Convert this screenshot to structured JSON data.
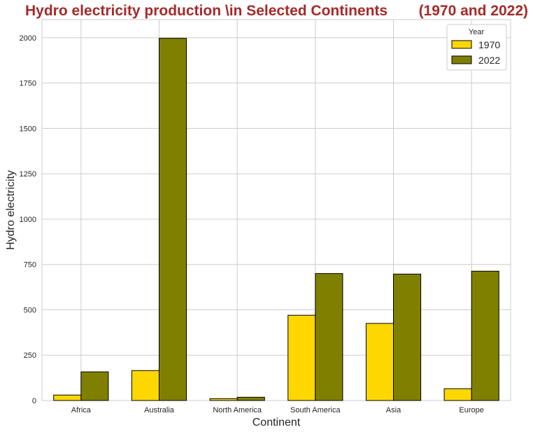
{
  "chart_data": {
    "type": "bar",
    "title_left": "Hydro electricity production \\in Selected Continents",
    "title_right": "(1970 and 2022)",
    "xlabel": "Continent",
    "ylabel": "Hydro electricity",
    "categories": [
      "Africa",
      "Australia",
      "North America",
      "South America",
      "Asia",
      "Europe"
    ],
    "series": [
      {
        "name": "1970",
        "color": "#ffd700",
        "values": [
          30,
          165,
          10,
          470,
          425,
          65
        ]
      },
      {
        "name": "2022",
        "color": "#808000",
        "values": [
          158,
          1997,
          18,
          700,
          697,
          713
        ]
      }
    ],
    "ylim": [
      0,
      2100
    ],
    "yticks": [
      0,
      250,
      500,
      750,
      1000,
      1250,
      1500,
      1750,
      2000
    ],
    "grid": true,
    "legend": {
      "title": "Year",
      "position": "top-right"
    }
  }
}
